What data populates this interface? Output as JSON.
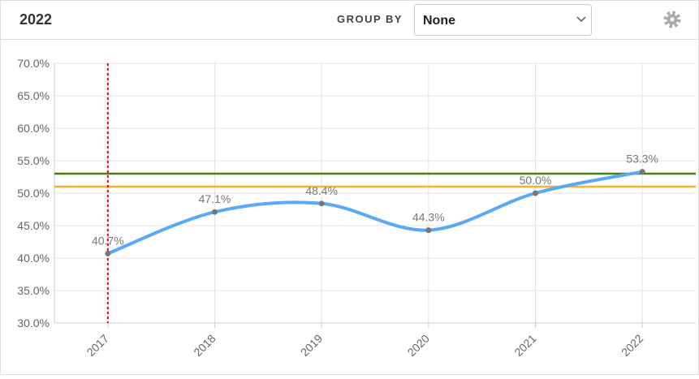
{
  "header": {
    "title": "2022",
    "group_by_label": "GROUP BY",
    "group_by_value": "None"
  },
  "chart_data": {
    "type": "line",
    "categories": [
      "2017",
      "2018",
      "2019",
      "2020",
      "2021",
      "2022"
    ],
    "series": [
      {
        "color": "#5aa9f5",
        "values": [
          40.7,
          47.1,
          48.4,
          44.3,
          50.0,
          53.3
        ],
        "value_labels": [
          "40.7%",
          "47.1%",
          "48.4%",
          "44.3%",
          "50.0%",
          "53.3%"
        ]
      }
    ],
    "ylim": [
      30,
      70
    ],
    "yticks": [
      {
        "value": 30,
        "label": "30.0%"
      },
      {
        "value": 35,
        "label": "35.0%"
      },
      {
        "value": 40,
        "label": "40.0%"
      },
      {
        "value": 45,
        "label": "45.0%"
      },
      {
        "value": 50,
        "label": "50.0%"
      },
      {
        "value": 55,
        "label": "55.0%"
      },
      {
        "value": 60,
        "label": "60.0%"
      },
      {
        "value": 65,
        "label": "65.0%"
      },
      {
        "value": 70,
        "label": "70.0%"
      }
    ],
    "grid": true,
    "smooth": true,
    "reference_lines": [
      {
        "value": 53,
        "color": "#4a7f12"
      },
      {
        "value": 51,
        "color": "#f7b32b"
      }
    ],
    "vertical_marker": {
      "category_index": 0,
      "color": "#c0141c"
    }
  }
}
